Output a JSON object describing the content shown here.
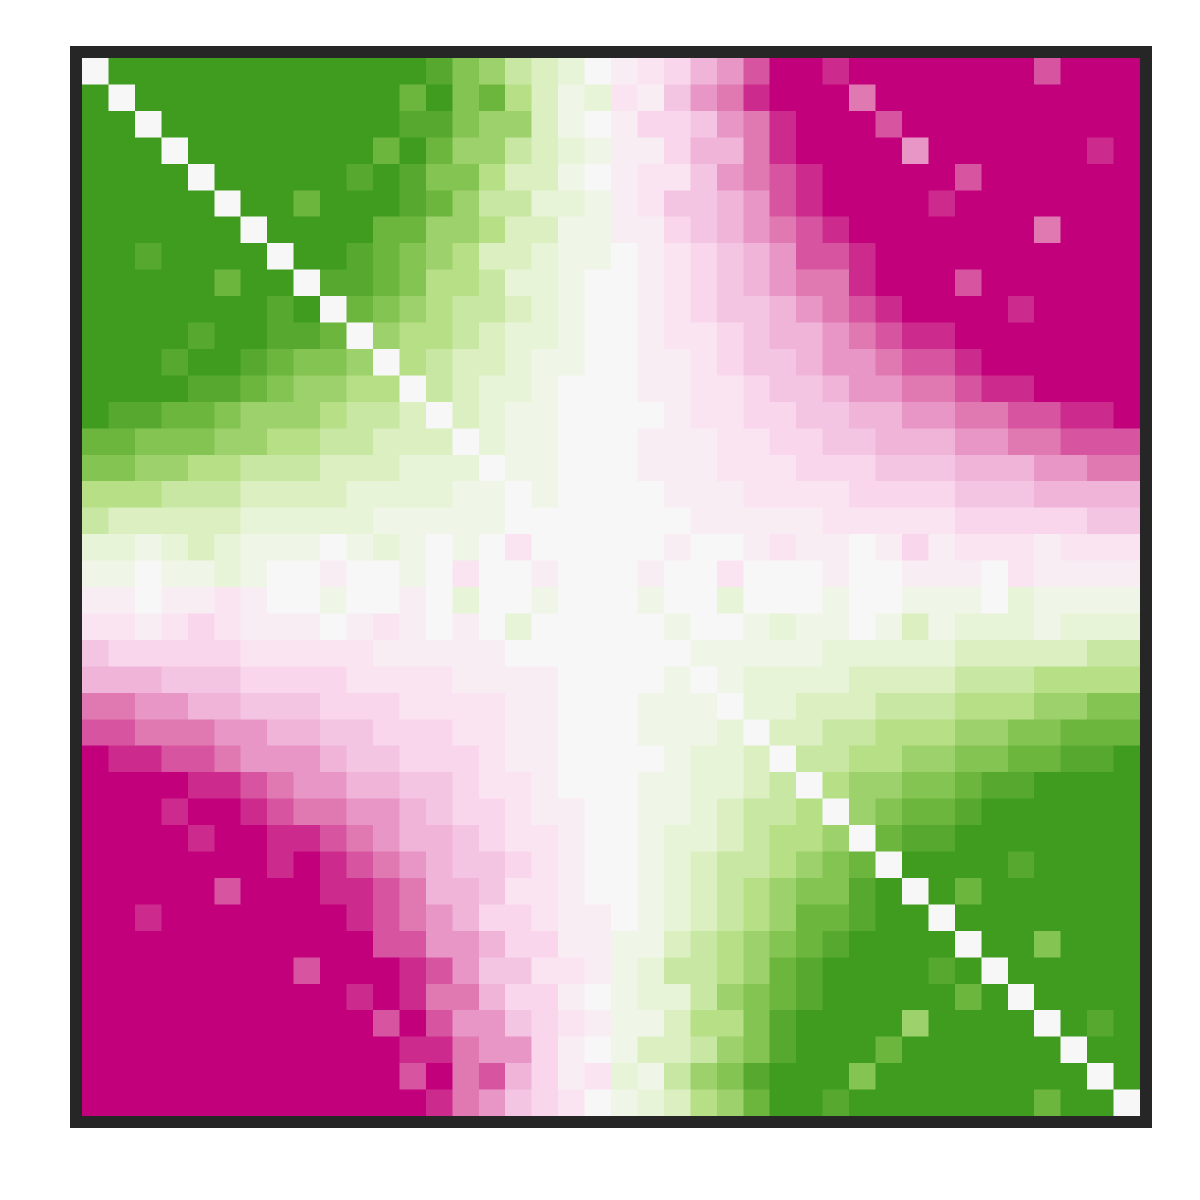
{
  "chart_data": {
    "type": "heatmap",
    "vlim": [
      -10,
      10
    ],
    "colors": [
      "#c2007b",
      "#dc6aa9",
      "#f0b4d8",
      "#fbdff0",
      "#f7f7f7",
      "#e4f3cf",
      "#b6df86",
      "#78bd45",
      "#3f9c1f"
    ],
    "values": [
      [
        0,
        10,
        10,
        10,
        10,
        10,
        10,
        10,
        10,
        10,
        10,
        10,
        10,
        9,
        7,
        6,
        4,
        3,
        2,
        0,
        -1,
        -2,
        -3,
        -5,
        -6,
        -8,
        -10,
        -10,
        -9,
        -10,
        -10,
        -10,
        -10,
        -10,
        -10,
        -10,
        -8,
        -10,
        -10,
        -10
      ],
      [
        10,
        0,
        10,
        10,
        10,
        10,
        10,
        10,
        10,
        10,
        10,
        10,
        8,
        10,
        7,
        8,
        5,
        3,
        1,
        2,
        -2,
        -1,
        -4,
        -6,
        -7,
        -9,
        -10,
        -10,
        -10,
        -7,
        -10,
        -10,
        -10,
        -10,
        -10,
        -10,
        -10,
        -10,
        -10,
        -10
      ],
      [
        10,
        10,
        0,
        10,
        10,
        10,
        10,
        10,
        10,
        10,
        10,
        10,
        9,
        9,
        7,
        6,
        6,
        3,
        1,
        0,
        -1,
        -3,
        -3,
        -4,
        -6,
        -7,
        -9,
        -10,
        -10,
        -10,
        -8,
        -10,
        -10,
        -10,
        -10,
        -10,
        -10,
        -10,
        -10,
        -10
      ],
      [
        10,
        10,
        10,
        0,
        10,
        10,
        10,
        10,
        10,
        10,
        10,
        8,
        10,
        8,
        6,
        6,
        4,
        3,
        2,
        1,
        -1,
        -1,
        -3,
        -5,
        -5,
        -7,
        -9,
        -10,
        -10,
        -10,
        -10,
        -6,
        -10,
        -10,
        -10,
        -10,
        -10,
        -10,
        -9,
        -10
      ],
      [
        10,
        10,
        10,
        10,
        0,
        10,
        10,
        10,
        10,
        10,
        9,
        10,
        9,
        7,
        7,
        5,
        3,
        3,
        1,
        0,
        -1,
        -2,
        -2,
        -4,
        -6,
        -7,
        -8,
        -9,
        -10,
        -10,
        -10,
        -10,
        -10,
        -8,
        -10,
        -10,
        -10,
        -10,
        -10,
        -10
      ],
      [
        10,
        10,
        10,
        10,
        10,
        0,
        10,
        10,
        8,
        10,
        10,
        10,
        9,
        8,
        6,
        4,
        4,
        2,
        2,
        1,
        -1,
        -2,
        -4,
        -4,
        -5,
        -6,
        -8,
        -9,
        -10,
        -10,
        -10,
        -10,
        -9,
        -10,
        -10,
        -10,
        -10,
        -10,
        -10,
        -10
      ],
      [
        10,
        10,
        10,
        10,
        10,
        10,
        0,
        10,
        10,
        10,
        10,
        8,
        8,
        6,
        6,
        5,
        3,
        3,
        1,
        1,
        -1,
        -1,
        -3,
        -4,
        -5,
        -6,
        -7,
        -8,
        -9,
        -10,
        -10,
        -10,
        -10,
        -10,
        -10,
        -10,
        -7,
        -10,
        -10,
        -10
      ],
      [
        10,
        10,
        9,
        10,
        10,
        10,
        10,
        0,
        10,
        10,
        9,
        8,
        7,
        6,
        5,
        3,
        3,
        2,
        1,
        1,
        0,
        -1,
        -2,
        -3,
        -4,
        -5,
        -6,
        -8,
        -8,
        -9,
        -10,
        -10,
        -10,
        -10,
        -10,
        -10,
        -10,
        -10,
        -10,
        -10
      ],
      [
        10,
        10,
        10,
        10,
        10,
        8,
        10,
        10,
        0,
        9,
        9,
        8,
        7,
        5,
        5,
        4,
        2,
        2,
        1,
        0,
        0,
        -1,
        -2,
        -3,
        -4,
        -5,
        -6,
        -7,
        -7,
        -9,
        -10,
        -10,
        -10,
        -8,
        -10,
        -10,
        -10,
        -10,
        -10,
        -10
      ],
      [
        10,
        10,
        10,
        10,
        10,
        10,
        10,
        9,
        10,
        0,
        8,
        7,
        6,
        5,
        4,
        4,
        3,
        2,
        1,
        0,
        0,
        -1,
        -2,
        -3,
        -4,
        -4,
        -5,
        -6,
        -7,
        -8,
        -9,
        -10,
        -10,
        -10,
        -10,
        -9,
        -10,
        -10,
        -10,
        -10
      ],
      [
        10,
        10,
        10,
        10,
        9,
        10,
        10,
        9,
        9,
        8,
        0,
        6,
        5,
        5,
        4,
        3,
        2,
        2,
        1,
        0,
        0,
        -1,
        -2,
        -2,
        -3,
        -4,
        -5,
        -5,
        -6,
        -7,
        -8,
        -9,
        -9,
        -10,
        -10,
        -10,
        -10,
        -10,
        -10,
        -10
      ],
      [
        10,
        10,
        10,
        9,
        10,
        10,
        9,
        8,
        7,
        7,
        6,
        0,
        5,
        4,
        3,
        3,
        2,
        1,
        1,
        0,
        0,
        -1,
        -1,
        -2,
        -3,
        -4,
        -4,
        -5,
        -6,
        -6,
        -7,
        -8,
        -8,
        -9,
        -10,
        -10,
        -10,
        -10,
        -10,
        -10
      ],
      [
        10,
        10,
        10,
        10,
        9,
        9,
        8,
        7,
        6,
        6,
        5,
        5,
        0,
        4,
        3,
        2,
        2,
        1,
        0,
        0,
        0,
        -1,
        -1,
        -2,
        -2,
        -3,
        -4,
        -4,
        -5,
        -6,
        -6,
        -7,
        -7,
        -8,
        -9,
        -9,
        -10,
        -10,
        -10,
        -10
      ],
      [
        10,
        9,
        9,
        8,
        8,
        7,
        6,
        6,
        6,
        5,
        4,
        4,
        3,
        0,
        3,
        2,
        1,
        1,
        0,
        0,
        0,
        0,
        -1,
        -2,
        -2,
        -3,
        -3,
        -4,
        -4,
        -5,
        -5,
        -6,
        -6,
        -7,
        -7,
        -8,
        -8,
        -9,
        -9,
        -10
      ],
      [
        8,
        8,
        7,
        7,
        7,
        6,
        6,
        5,
        5,
        4,
        4,
        3,
        3,
        3,
        0,
        2,
        1,
        1,
        0,
        0,
        0,
        -1,
        -1,
        -1,
        -2,
        -2,
        -3,
        -3,
        -4,
        -4,
        -5,
        -5,
        -5,
        -6,
        -6,
        -7,
        -7,
        -8,
        -8,
        -8
      ],
      [
        7,
        7,
        6,
        6,
        5,
        5,
        4,
        4,
        4,
        3,
        3,
        3,
        2,
        2,
        2,
        0,
        1,
        1,
        0,
        0,
        0,
        -1,
        -1,
        -1,
        -2,
        -2,
        -2,
        -3,
        -3,
        -3,
        -4,
        -4,
        -4,
        -5,
        -5,
        -5,
        -6,
        -6,
        -7,
        -7
      ],
      [
        5,
        5,
        5,
        4,
        4,
        4,
        3,
        3,
        3,
        3,
        2,
        2,
        2,
        2,
        1,
        1,
        0,
        1,
        0,
        0,
        0,
        0,
        -1,
        -1,
        -1,
        -2,
        -2,
        -2,
        -2,
        -3,
        -3,
        -3,
        -3,
        -4,
        -4,
        -4,
        -5,
        -5,
        -5,
        -5
      ],
      [
        4,
        3,
        3,
        3,
        3,
        3,
        2,
        2,
        2,
        2,
        2,
        1,
        1,
        1,
        1,
        1,
        0,
        0,
        0,
        0,
        0,
        0,
        0,
        -1,
        -1,
        -1,
        -1,
        -1,
        -2,
        -2,
        -2,
        -2,
        -2,
        -3,
        -3,
        -3,
        -3,
        -3,
        -4,
        -4
      ],
      [
        2,
        2,
        1,
        2,
        3,
        2,
        1,
        1,
        1,
        0,
        1,
        2,
        1,
        0,
        1,
        0,
        -2,
        0,
        0,
        0,
        0,
        0,
        -1,
        0,
        0,
        -1,
        -2,
        -1,
        -1,
        0,
        -1,
        -3,
        -1,
        -2,
        -2,
        -2,
        -1,
        -2,
        -2,
        -2
      ],
      [
        1,
        1,
        0,
        1,
        1,
        2,
        1,
        0,
        0,
        -1,
        0,
        0,
        1,
        0,
        -2,
        0,
        0,
        -1,
        0,
        0,
        0,
        -1,
        0,
        0,
        -2,
        0,
        0,
        0,
        -1,
        0,
        0,
        -1,
        -1,
        -1,
        0,
        -2,
        -1,
        -1,
        -1,
        -1
      ],
      [
        -1,
        -1,
        0,
        -1,
        -1,
        -2,
        -1,
        0,
        0,
        1,
        0,
        0,
        -1,
        0,
        2,
        0,
        0,
        1,
        0,
        0,
        0,
        1,
        0,
        0,
        2,
        0,
        0,
        0,
        1,
        0,
        0,
        1,
        1,
        1,
        0,
        2,
        1,
        1,
        1,
        1
      ],
      [
        -2,
        -2,
        -1,
        -2,
        -3,
        -2,
        -1,
        -1,
        -1,
        0,
        -1,
        -2,
        -1,
        0,
        -1,
        0,
        2,
        0,
        0,
        0,
        0,
        0,
        1,
        0,
        0,
        1,
        2,
        1,
        1,
        0,
        1,
        3,
        1,
        2,
        2,
        2,
        1,
        2,
        2,
        2
      ],
      [
        -4,
        -3,
        -3,
        -3,
        -3,
        -3,
        -2,
        -2,
        -2,
        -2,
        -2,
        -1,
        -1,
        -1,
        -1,
        -1,
        0,
        0,
        0,
        0,
        0,
        0,
        0,
        1,
        1,
        1,
        1,
        1,
        2,
        2,
        2,
        2,
        2,
        3,
        3,
        3,
        3,
        3,
        4,
        4
      ],
      [
        -5,
        -5,
        -5,
        -4,
        -4,
        -4,
        -3,
        -3,
        -3,
        -3,
        -2,
        -2,
        -2,
        -2,
        -1,
        -1,
        -1,
        -1,
        0,
        0,
        0,
        0,
        1,
        0,
        1,
        2,
        2,
        2,
        2,
        3,
        3,
        3,
        3,
        4,
        4,
        4,
        5,
        5,
        5,
        5
      ],
      [
        -7,
        -7,
        -6,
        -6,
        -5,
        -5,
        -4,
        -4,
        -4,
        -3,
        -3,
        -3,
        -2,
        -2,
        -2,
        -2,
        -1,
        -1,
        0,
        0,
        0,
        1,
        1,
        1,
        0,
        2,
        2,
        3,
        3,
        3,
        4,
        4,
        4,
        5,
        5,
        5,
        6,
        6,
        7,
        7
      ],
      [
        -8,
        -8,
        -7,
        -7,
        -7,
        -6,
        -6,
        -5,
        -5,
        -4,
        -4,
        -3,
        -3,
        -3,
        -2,
        -2,
        -1,
        -1,
        0,
        0,
        0,
        1,
        1,
        1,
        2,
        0,
        3,
        3,
        4,
        4,
        5,
        5,
        5,
        6,
        6,
        7,
        7,
        8,
        8,
        8
      ],
      [
        -10,
        -9,
        -9,
        -8,
        -8,
        -7,
        -6,
        -6,
        -6,
        -5,
        -4,
        -4,
        -3,
        -3,
        -3,
        -2,
        -1,
        -1,
        0,
        0,
        0,
        0,
        1,
        2,
        2,
        3,
        0,
        4,
        4,
        5,
        5,
        6,
        6,
        7,
        7,
        8,
        8,
        9,
        9,
        10
      ],
      [
        -10,
        -10,
        -10,
        -10,
        -9,
        -9,
        -8,
        -7,
        -6,
        -6,
        -5,
        -5,
        -4,
        -4,
        -3,
        -2,
        -2,
        -1,
        0,
        0,
        0,
        1,
        1,
        2,
        2,
        3,
        4,
        0,
        5,
        6,
        6,
        7,
        7,
        8,
        9,
        9,
        10,
        10,
        10,
        10
      ],
      [
        -10,
        -10,
        -10,
        -9,
        -10,
        -10,
        -9,
        -8,
        -7,
        -7,
        -6,
        -6,
        -5,
        -4,
        -3,
        -3,
        -2,
        -1,
        -1,
        0,
        0,
        1,
        1,
        2,
        3,
        4,
        4,
        5,
        0,
        6,
        7,
        8,
        8,
        9,
        10,
        10,
        10,
        10,
        10,
        10
      ],
      [
        -10,
        -10,
        -10,
        -10,
        -9,
        -10,
        -10,
        -9,
        -9,
        -8,
        -7,
        -6,
        -5,
        -5,
        -4,
        -3,
        -2,
        -2,
        -1,
        0,
        0,
        1,
        2,
        2,
        3,
        4,
        5,
        5,
        6,
        0,
        8,
        9,
        9,
        10,
        10,
        10,
        10,
        10,
        10,
        10
      ],
      [
        -10,
        -10,
        -10,
        -10,
        -10,
        -10,
        -10,
        -9,
        -10,
        -9,
        -8,
        -7,
        -6,
        -5,
        -4,
        -4,
        -3,
        -2,
        -1,
        0,
        0,
        1,
        2,
        3,
        4,
        4,
        5,
        6,
        7,
        8,
        0,
        10,
        10,
        10,
        10,
        9,
        10,
        10,
        10,
        10
      ],
      [
        -10,
        -10,
        -10,
        -10,
        -10,
        -8,
        -10,
        -10,
        -10,
        -9,
        -9,
        -8,
        -7,
        -5,
        -5,
        -4,
        -2,
        -2,
        -1,
        0,
        0,
        1,
        2,
        3,
        4,
        5,
        6,
        7,
        7,
        9,
        10,
        0,
        10,
        8,
        10,
        10,
        10,
        10,
        10,
        10
      ],
      [
        -10,
        -10,
        -9,
        -10,
        -10,
        -10,
        -10,
        -10,
        -10,
        -10,
        -9,
        -8,
        -7,
        -6,
        -5,
        -3,
        -3,
        -2,
        -1,
        -1,
        0,
        1,
        2,
        3,
        4,
        5,
        6,
        8,
        8,
        9,
        10,
        10,
        0,
        10,
        10,
        10,
        10,
        10,
        10,
        10
      ],
      [
        -10,
        -10,
        -10,
        -10,
        -10,
        -10,
        -10,
        -10,
        -10,
        -10,
        -10,
        -8,
        -8,
        -6,
        -6,
        -5,
        -3,
        -3,
        -1,
        -1,
        1,
        1,
        3,
        4,
        5,
        6,
        7,
        8,
        9,
        10,
        10,
        10,
        10,
        0,
        10,
        10,
        7,
        10,
        10,
        10
      ],
      [
        -10,
        -10,
        -10,
        -10,
        -10,
        -10,
        -10,
        -10,
        -8,
        -10,
        -10,
        -10,
        -9,
        -8,
        -6,
        -4,
        -4,
        -2,
        -2,
        -1,
        1,
        2,
        4,
        4,
        5,
        6,
        8,
        9,
        10,
        10,
        10,
        10,
        9,
        10,
        0,
        10,
        10,
        10,
        10,
        10
      ],
      [
        -10,
        -10,
        -10,
        -10,
        -10,
        -10,
        -10,
        -10,
        -10,
        -10,
        -9,
        -10,
        -9,
        -7,
        -7,
        -5,
        -3,
        -3,
        -1,
        0,
        1,
        2,
        2,
        4,
        6,
        7,
        8,
        9,
        10,
        10,
        10,
        10,
        10,
        8,
        10,
        0,
        10,
        10,
        10,
        10
      ],
      [
        -10,
        -10,
        -10,
        -10,
        -10,
        -10,
        -10,
        -10,
        -10,
        -10,
        -10,
        -8,
        -10,
        -8,
        -6,
        -6,
        -4,
        -3,
        -2,
        -1,
        1,
        1,
        3,
        5,
        5,
        7,
        9,
        10,
        10,
        10,
        10,
        6,
        10,
        10,
        10,
        10,
        0,
        10,
        9,
        10
      ],
      [
        -10,
        -10,
        -10,
        -10,
        -10,
        -10,
        -10,
        -10,
        -10,
        -10,
        -10,
        -10,
        -9,
        -9,
        -7,
        -6,
        -6,
        -3,
        -1,
        0,
        1,
        3,
        3,
        4,
        6,
        7,
        9,
        10,
        10,
        10,
        8,
        10,
        10,
        10,
        10,
        10,
        10,
        0,
        10,
        10
      ],
      [
        -10,
        -10,
        -10,
        -10,
        -10,
        -10,
        -10,
        -10,
        -10,
        -10,
        -10,
        -10,
        -8,
        -10,
        -7,
        -8,
        -5,
        -3,
        -1,
        -2,
        2,
        1,
        4,
        6,
        7,
        9,
        10,
        10,
        10,
        7,
        10,
        10,
        10,
        10,
        10,
        10,
        10,
        10,
        0,
        10
      ],
      [
        -10,
        -10,
        -10,
        -10,
        -10,
        -10,
        -10,
        -10,
        -10,
        -10,
        -10,
        -10,
        -10,
        -9,
        -7,
        -6,
        -4,
        -3,
        -2,
        0,
        1,
        2,
        3,
        5,
        6,
        8,
        10,
        10,
        9,
        10,
        10,
        10,
        10,
        10,
        10,
        10,
        8,
        10,
        10,
        0
      ]
    ]
  }
}
